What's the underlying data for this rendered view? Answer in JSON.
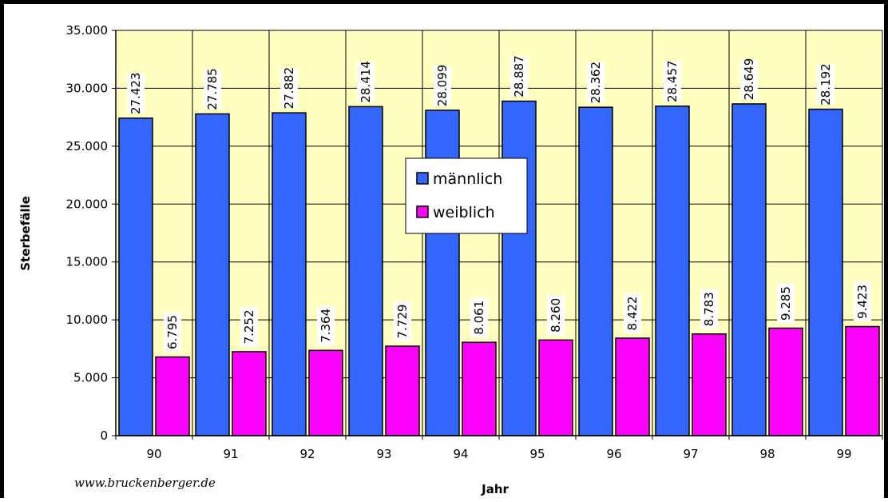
{
  "chart_data": {
    "type": "bar",
    "xlabel": "Jahr",
    "ylabel": "Sterbefälle",
    "categories": [
      "90",
      "91",
      "92",
      "93",
      "94",
      "95",
      "96",
      "97",
      "98",
      "99"
    ],
    "series": [
      {
        "name": "männlich",
        "color": "#3366ff",
        "values": [
          27423,
          27785,
          27882,
          28414,
          28099,
          28887,
          28362,
          28457,
          28649,
          28192
        ],
        "labels": [
          "27.423",
          "27.785",
          "27.882",
          "28.414",
          "28.099",
          "28.887",
          "28.362",
          "28.457",
          "28.649",
          "28.192"
        ]
      },
      {
        "name": "weiblich",
        "color": "#ff00ff",
        "values": [
          6795,
          7252,
          7364,
          7729,
          8061,
          8260,
          8422,
          8783,
          9285,
          9423
        ],
        "labels": [
          "6.795",
          "7.252",
          "7.364",
          "7.729",
          "8.061",
          "8.260",
          "8.422",
          "8.783",
          "9.285",
          "9.423"
        ]
      }
    ],
    "ylim": [
      0,
      35000
    ],
    "yticks": [
      {
        "value": 0,
        "label": "0"
      },
      {
        "value": 5000,
        "label": "5.000"
      },
      {
        "value": 10000,
        "label": "10.000"
      },
      {
        "value": 15000,
        "label": "15.000"
      },
      {
        "value": 20000,
        "label": "20.000"
      },
      {
        "value": 25000,
        "label": "25.000"
      },
      {
        "value": 30000,
        "label": "30.000"
      },
      {
        "value": 35000,
        "label": "35.000"
      }
    ],
    "grid": true,
    "legend": "center",
    "plot_background": "#ffffc0"
  },
  "credit": "www.bruckenberger.de"
}
